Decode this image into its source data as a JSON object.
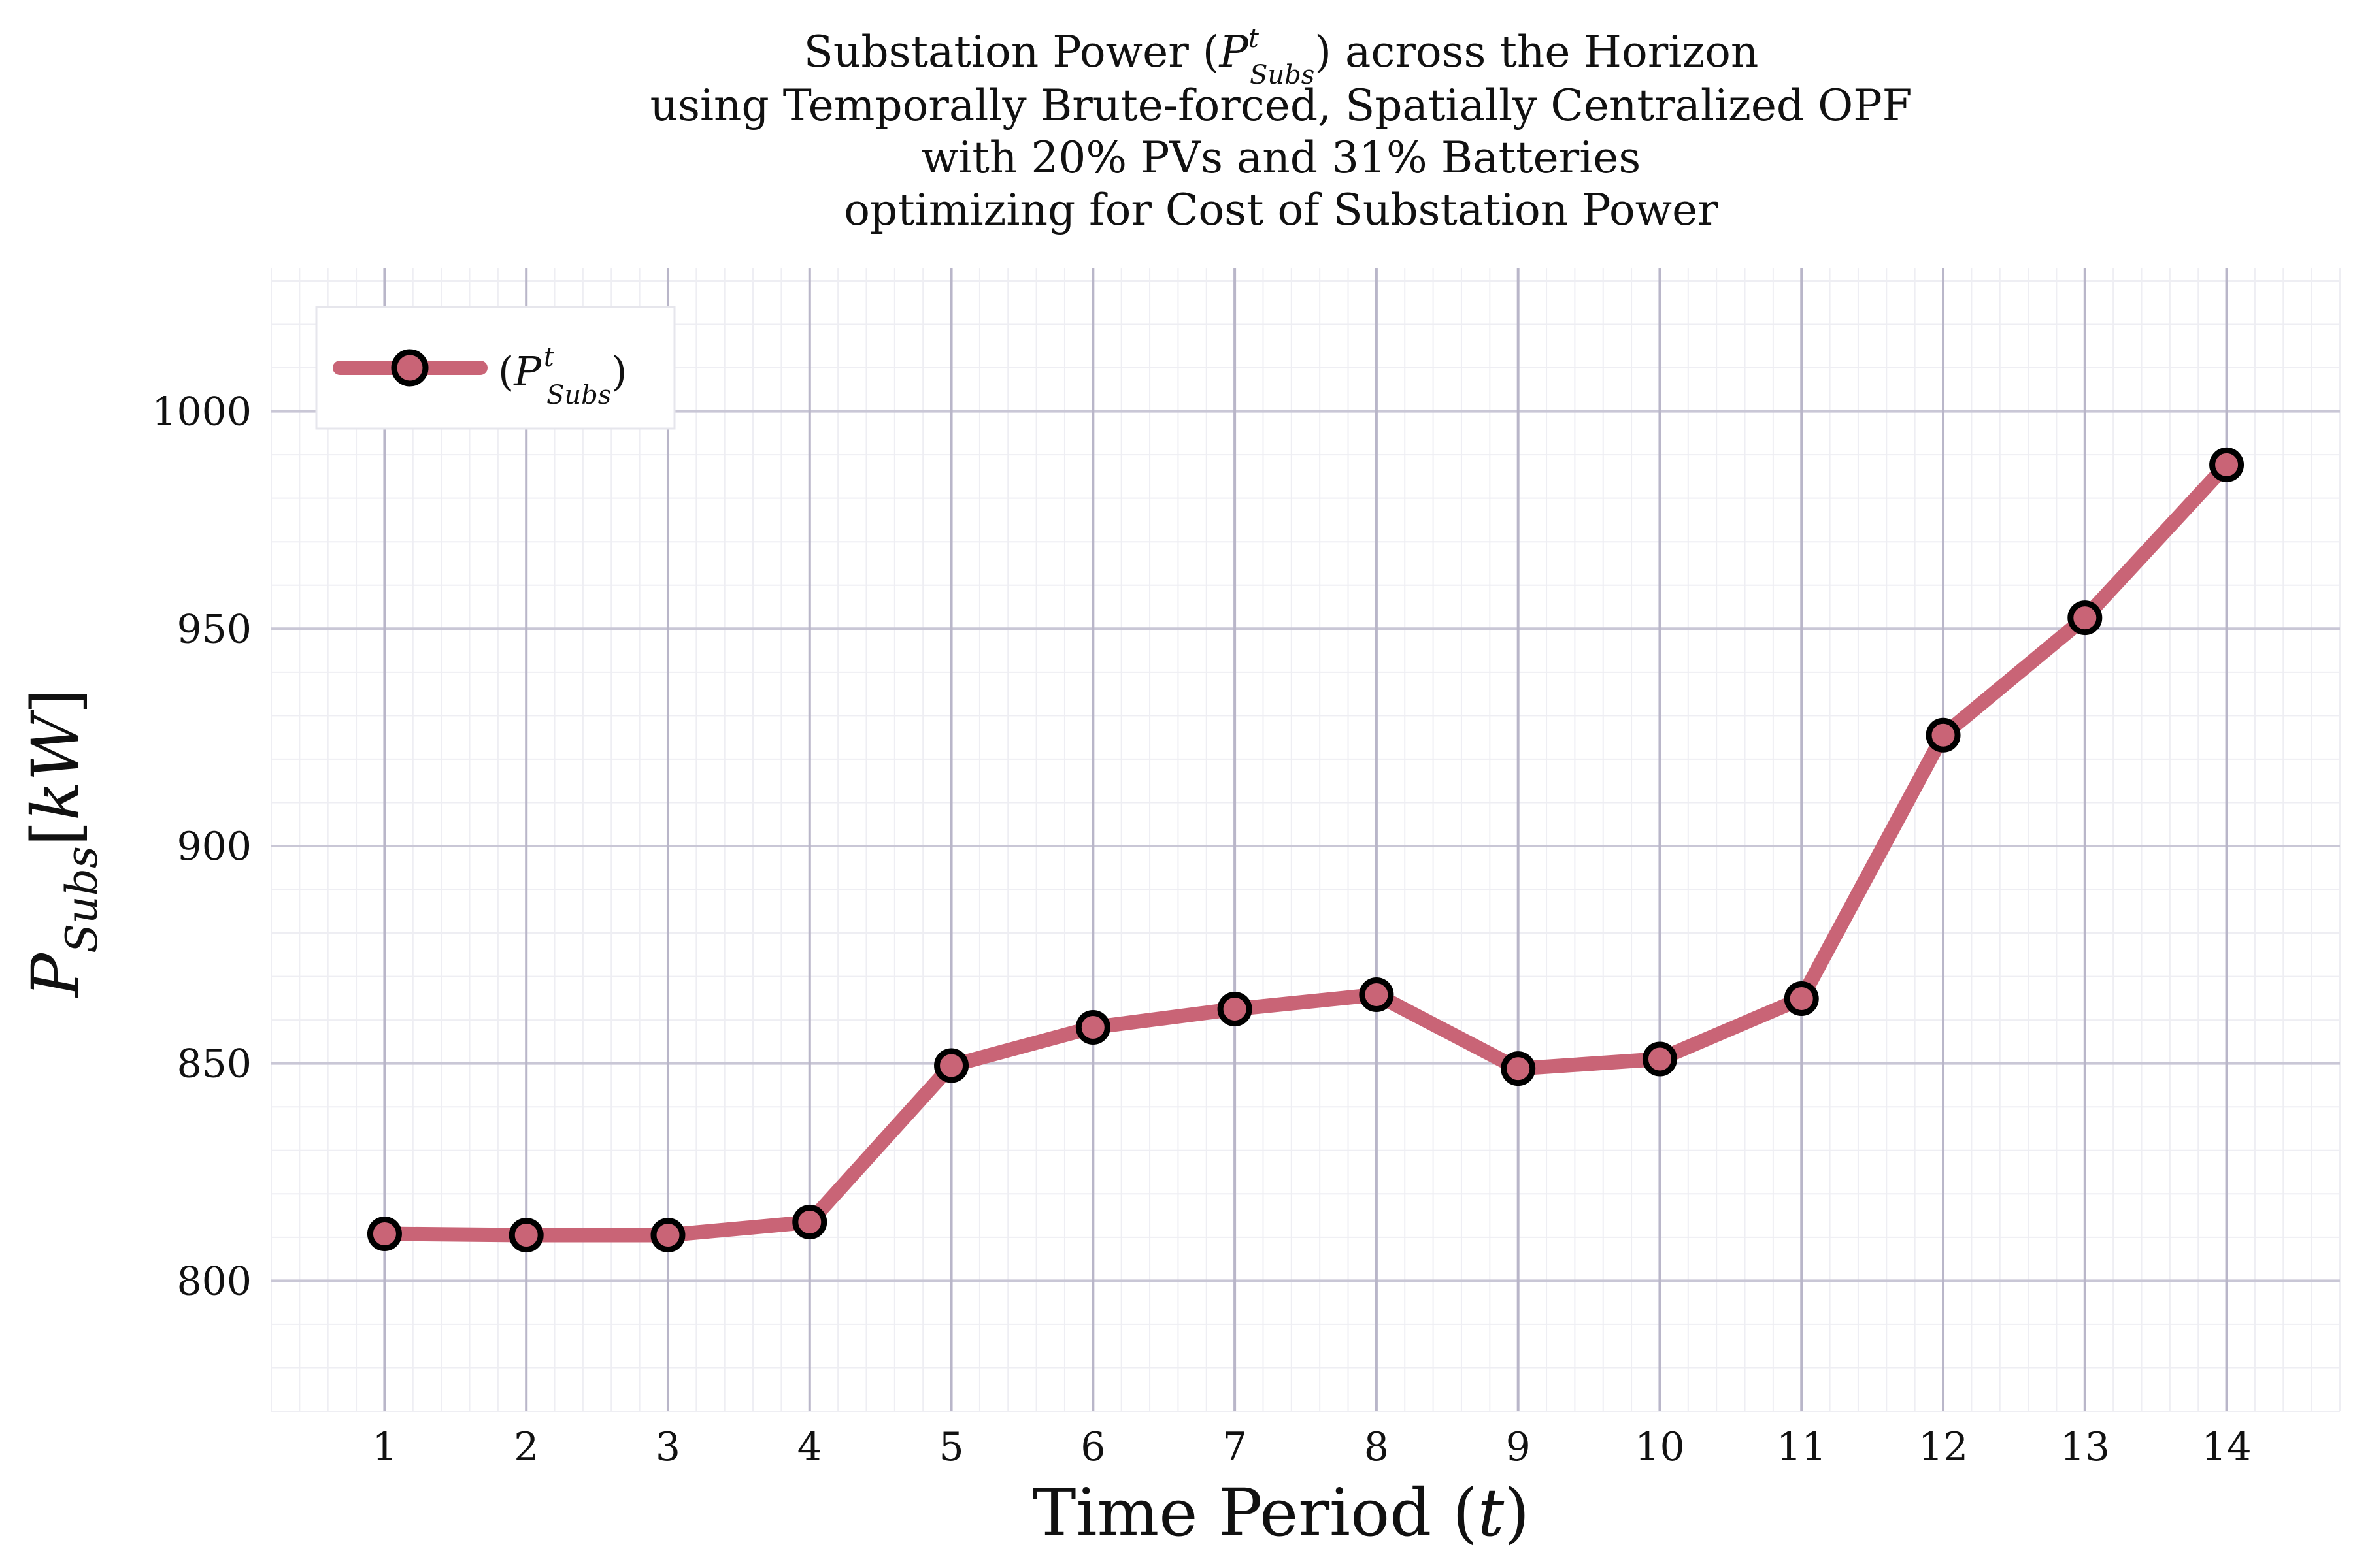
{
  "chart_data": {
    "type": "line",
    "title_lines": [
      "Substation Power (P^t_Subs) across the Horizon",
      "using Temporally Brute-forced, Spatially Centralized OPF",
      "with 20% PVs and 31% Batteries",
      "optimizing for Cost of Substation Power"
    ],
    "title_parts": {
      "line1_prefix": "Substation Power (",
      "line1_sym": "P",
      "line1_sup": "t",
      "line1_sub": "Subs",
      "line1_suffix": ") across the Horizon",
      "line2": "using Temporally Brute-forced, Spatially Centralized OPF",
      "line3": "with 20% PVs and 31% Batteries",
      "line4": "optimizing for Cost of Substation Power"
    },
    "xlabel": {
      "prefix": "Time Period (",
      "sym": "t",
      "suffix": ")"
    },
    "ylabel": {
      "sym": "P",
      "sub": "Subs",
      "unit_open": "[",
      "unit": "kW",
      "unit_close": "]"
    },
    "x": [
      1,
      2,
      3,
      4,
      5,
      6,
      7,
      8,
      9,
      10,
      11,
      12,
      13,
      14
    ],
    "x_ticks": [
      "1",
      "2",
      "3",
      "4",
      "5",
      "6",
      "7",
      "8",
      "9",
      "10",
      "11",
      "12",
      "13",
      "14"
    ],
    "y_ticks": [
      800,
      850,
      900,
      950,
      1000
    ],
    "xlim": [
      0.2,
      14.8
    ],
    "ylim": [
      770,
      1033
    ],
    "grid": true,
    "legend_position": "top-left",
    "series": [
      {
        "name_parts": {
          "open": "(",
          "sym": "P",
          "sup": "t",
          "sub": "Subs",
          "close": ")"
        },
        "color": "#c96476",
        "marker_edge": "#000000",
        "values": [
          810.8,
          810.5,
          810.5,
          813.5,
          849.5,
          858.3,
          862.5,
          865.8,
          848.8,
          851.0,
          864.9,
          925.5,
          952.5,
          987.7
        ]
      }
    ],
    "colors": {
      "major_grid": "#c9c7d6",
      "major_grid_x": "#b9b6c9",
      "minor_grid": "#eeeef3"
    }
  }
}
